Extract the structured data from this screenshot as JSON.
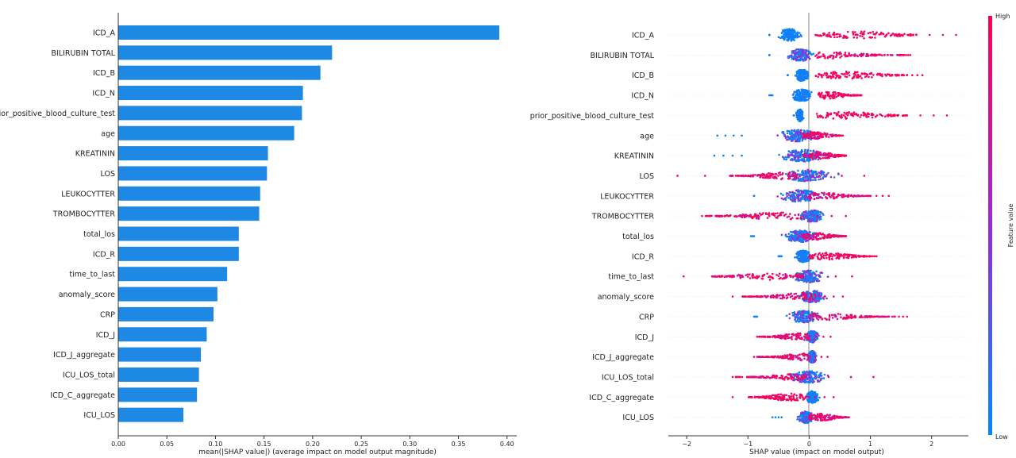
{
  "chart_data": [
    {
      "type": "bar",
      "orientation": "horizontal",
      "categories": [
        "ICD_A",
        "BILIRUBIN TOTAL",
        "ICD_B",
        "ICD_N",
        "prior_positive_blood_culture_test",
        "age",
        "KREATININ",
        "LOS",
        "LEUKOCYTTER",
        "TROMBOCYTTER",
        "total_los",
        "ICD_R",
        "time_to_last",
        "anomaly_score",
        "CRP",
        "ICD_J",
        "ICD_J_aggregate",
        "ICU_LOS_total",
        "ICD_C_aggregate",
        "ICU_LOS"
      ],
      "values": [
        0.392,
        0.22,
        0.208,
        0.19,
        0.189,
        0.181,
        0.154,
        0.153,
        0.146,
        0.145,
        0.124,
        0.124,
        0.112,
        0.102,
        0.098,
        0.091,
        0.085,
        0.083,
        0.081,
        0.067
      ],
      "xlabel": "mean(|SHAP value|) (average impact on model output magnitude)",
      "xlim": [
        0,
        0.41
      ],
      "xticks": [
        "0.00",
        "0.05",
        "0.10",
        "0.15",
        "0.20",
        "0.25",
        "0.30",
        "0.35",
        "0.40"
      ],
      "bar_color": "#1e88e5"
    },
    {
      "type": "scatter",
      "subtype": "beeswarm",
      "categories": [
        "ICD_A",
        "BILIRUBIN TOTAL",
        "ICD_B",
        "ICD_N",
        "prior_positive_blood_culture_test",
        "age",
        "KREATININ",
        "LOS",
        "LEUKOCYTTER",
        "TROMBOCYTTER",
        "total_los",
        "ICD_R",
        "time_to_last",
        "anomaly_score",
        "CRP",
        "ICD_J",
        "ICD_J_aggregate",
        "ICU_LOS_total",
        "ICD_C_aggregate",
        "ICU_LOS"
      ],
      "xlabel": "SHAP value (impact on model output)",
      "xlim": [
        -2.3,
        2.6
      ],
      "xticks": [
        "−2",
        "−1",
        "0",
        "1",
        "2"
      ],
      "colorbar": {
        "label": "Feature value",
        "high": "High",
        "low": "Low",
        "high_color": "#ff0051",
        "low_color": "#008bfb"
      },
      "rows": [
        {
          "low_range": [
            -0.65,
            0.0
          ],
          "high_range": [
            0.1,
            1.75
          ],
          "low_center": -0.32,
          "high_center": 0.8,
          "high_max": 2.4,
          "low_min": -0.65,
          "mix": false
        },
        {
          "low_range": [
            -0.65,
            0.1
          ],
          "high_range": [
            0.1,
            1.55
          ],
          "low_center": -0.15,
          "high_center": 0.3,
          "high_max": 1.65,
          "low_min": -0.65,
          "mix": true
        },
        {
          "low_range": [
            -0.35,
            0.0
          ],
          "high_range": [
            0.1,
            1.6
          ],
          "low_center": -0.12,
          "high_center": 0.6,
          "high_max": 1.85,
          "low_min": -0.35,
          "mix": false
        },
        {
          "low_range": [
            -0.6,
            0.0
          ],
          "high_range": [
            0.15,
            0.85
          ],
          "low_center": -0.12,
          "high_center": 0.3,
          "high_max": 0.85,
          "low_min": -0.65,
          "mix": false
        },
        {
          "low_range": [
            -0.25,
            -0.05
          ],
          "high_range": [
            0.1,
            1.6
          ],
          "low_center": -0.15,
          "high_center": 0.6,
          "high_max": 2.25,
          "low_min": -0.25,
          "mix": false
        },
        {
          "low_range": [
            -1.1,
            0.0
          ],
          "high_range": [
            -0.1,
            0.5
          ],
          "low_center": -0.2,
          "high_center": 0.1,
          "high_max": 0.55,
          "low_min": -1.5,
          "mix": true
        },
        {
          "low_range": [
            -1.1,
            0.2
          ],
          "high_range": [
            -0.1,
            0.6
          ],
          "low_center": -0.1,
          "high_center": 0.15,
          "high_max": 0.6,
          "low_min": -1.55,
          "mix": true
        },
        {
          "low_range": [
            -0.8,
            0.6
          ],
          "high_range": [
            -1.3,
            -0.2
          ],
          "low_center": 0.0,
          "high_center": -0.4,
          "high_max": 0.9,
          "low_min": -2.15,
          "mix": true
        },
        {
          "low_range": [
            -0.9,
            0.2
          ],
          "high_range": [
            0.0,
            1.0
          ],
          "low_center": -0.15,
          "high_center": 0.2,
          "high_max": 1.3,
          "low_min": -0.9,
          "mix": true
        },
        {
          "low_range": [
            -0.1,
            0.6
          ],
          "high_range": [
            -1.7,
            -0.1
          ],
          "low_center": 0.05,
          "high_center": -0.5,
          "high_max": 0.6,
          "low_min": -1.75,
          "mix": true
        },
        {
          "low_range": [
            -0.9,
            0.0
          ],
          "high_range": [
            -0.1,
            0.6
          ],
          "low_center": -0.15,
          "high_center": 0.1,
          "high_max": 0.6,
          "low_min": -0.95,
          "mix": true
        },
        {
          "low_range": [
            -0.45,
            0.0
          ],
          "high_range": [
            0.0,
            1.0
          ],
          "low_center": -0.1,
          "high_center": 0.3,
          "high_max": 1.1,
          "low_min": -0.5,
          "mix": false
        },
        {
          "low_range": [
            -0.2,
            0.7
          ],
          "high_range": [
            -1.6,
            -0.1
          ],
          "low_center": 0.0,
          "high_center": -0.6,
          "high_max": 0.7,
          "low_min": -2.05,
          "mix": true
        },
        {
          "low_range": [
            -0.2,
            0.55
          ],
          "high_range": [
            -1.1,
            0.1
          ],
          "low_center": 0.05,
          "high_center": -0.1,
          "high_max": 0.55,
          "low_min": -1.25,
          "mix": true
        },
        {
          "low_range": [
            -0.85,
            0.0
          ],
          "high_range": [
            0.0,
            1.4
          ],
          "low_center": -0.1,
          "high_center": 0.2,
          "high_max": 1.6,
          "low_min": -0.9,
          "mix": true
        },
        {
          "low_range": [
            0.0,
            0.35
          ],
          "high_range": [
            -0.85,
            0.0
          ],
          "low_center": 0.05,
          "high_center": -0.15,
          "high_max": 0.35,
          "low_min": -0.85,
          "mix": true
        },
        {
          "low_range": [
            0.0,
            0.25
          ],
          "high_range": [
            -0.85,
            0.0
          ],
          "low_center": 0.05,
          "high_center": -0.1,
          "high_max": 0.3,
          "low_min": -0.9,
          "mix": true
        },
        {
          "low_range": [
            -0.2,
            0.8
          ],
          "high_range": [
            -1.2,
            -0.05
          ],
          "low_center": 0.0,
          "high_center": -0.2,
          "high_max": 1.05,
          "low_min": -1.25,
          "mix": true
        },
        {
          "low_range": [
            0.0,
            0.35
          ],
          "high_range": [
            -1.0,
            -0.05
          ],
          "low_center": 0.05,
          "high_center": -0.3,
          "high_max": 0.4,
          "low_min": -1.25,
          "mix": false
        },
        {
          "low_range": [
            -0.45,
            0.0
          ],
          "high_range": [
            0.0,
            0.6
          ],
          "low_center": -0.05,
          "high_center": 0.2,
          "high_max": 0.65,
          "low_min": -0.6,
          "mix": true
        }
      ]
    }
  ]
}
